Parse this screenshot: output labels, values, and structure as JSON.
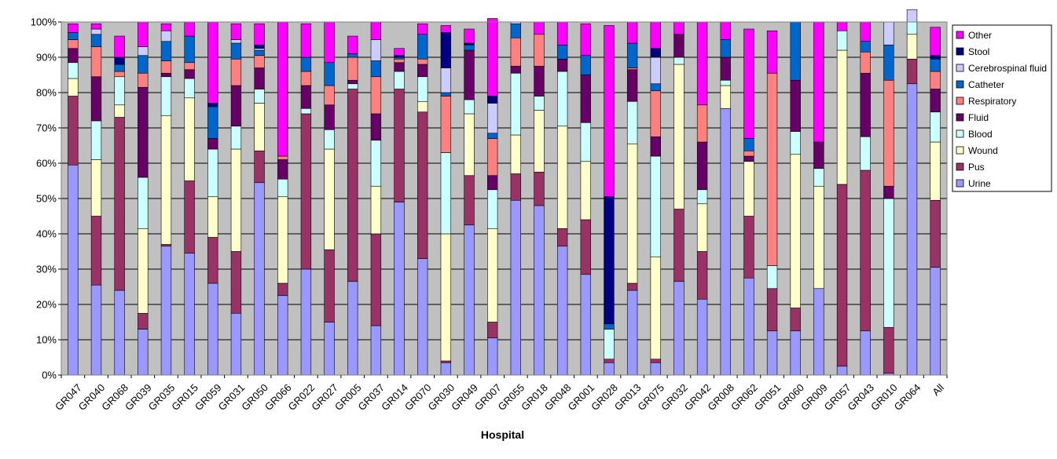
{
  "chart_data": {
    "type": "bar",
    "stacked": true,
    "percent_stacked": true,
    "title": "",
    "xlabel": "Hospital",
    "ylabel": "",
    "ylim": [
      0,
      100
    ],
    "yticks": [
      "0%",
      "10%",
      "20%",
      "30%",
      "40%",
      "50%",
      "60%",
      "70%",
      "80%",
      "90%",
      "100%"
    ],
    "grid": true,
    "plot_background": "#c0c0c0",
    "legend_position": "right",
    "categories": [
      "GR047",
      "GR040",
      "GR068",
      "GR039",
      "GR035",
      "GR015",
      "GR059",
      "GR031",
      "GR050",
      "GR066",
      "GR022",
      "GR027",
      "GR005",
      "GR037",
      "GR014",
      "GR070",
      "GR030",
      "GR049",
      "GR007",
      "GR055",
      "GR018",
      "GR048",
      "GR001",
      "GR028",
      "GR013",
      "GR075",
      "GR032",
      "GR042",
      "GR008",
      "GR062",
      "GR051",
      "GR060",
      "GR009",
      "GR057",
      "GR043",
      "GR010",
      "GR064",
      "All"
    ],
    "series": [
      {
        "name": "Urine",
        "color": "#9999ff",
        "values": [
          59.5,
          25.5,
          24,
          13,
          36.5,
          34.5,
          26,
          17.5,
          54.5,
          22.5,
          30,
          15,
          26.5,
          14,
          49,
          33,
          3.5,
          42.5,
          10.5,
          49.5,
          48,
          36.5,
          28.5,
          3.5,
          24,
          3.5,
          26.5,
          21.5,
          75.5,
          27.5,
          12.5,
          12.5,
          24.5,
          2.5,
          12.5,
          0.5,
          82.5,
          30.5
        ]
      },
      {
        "name": "Pus",
        "color": "#993366",
        "values": [
          19.5,
          19.5,
          49,
          4.5,
          0.5,
          20.5,
          13,
          17.5,
          9,
          3.5,
          44,
          20.5,
          54.5,
          26,
          32,
          41.5,
          0.5,
          14,
          4.5,
          7.5,
          9.5,
          5,
          15.5,
          1,
          2,
          1,
          20.5,
          13.5,
          0,
          17.5,
          12,
          6.5,
          0,
          51.5,
          45.5,
          13,
          7,
          19
        ]
      },
      {
        "name": "Wound",
        "color": "#ffffcc",
        "values": [
          5,
          16,
          3.5,
          24,
          36.5,
          23.5,
          11.5,
          29,
          13.5,
          24.5,
          0,
          28.5,
          0,
          13.5,
          0,
          3,
          36,
          17.5,
          26.5,
          11,
          17.5,
          29,
          16.5,
          0,
          39.5,
          29,
          41,
          13.5,
          6.5,
          15.5,
          0,
          43.5,
          29,
          38,
          0,
          0,
          7,
          16.5
        ]
      },
      {
        "name": "Blood",
        "color": "#ccffff",
        "values": [
          4.5,
          11,
          8,
          14.5,
          11,
          5.5,
          13.5,
          6.5,
          4,
          5,
          1.5,
          5.5,
          1.5,
          13,
          5,
          7,
          23,
          4,
          11,
          17.5,
          4,
          15.5,
          11,
          8.5,
          12,
          28.5,
          2,
          4,
          1.5,
          0,
          6.5,
          6.5,
          5,
          5.5,
          9.5,
          36.5,
          3.5,
          8.5
        ]
      },
      {
        "name": "Fluid",
        "color": "#660066",
        "values": [
          4,
          12.5,
          0,
          25.5,
          1,
          2.5,
          3,
          11.5,
          6,
          5.5,
          6.5,
          7,
          1,
          7.5,
          2.5,
          3.5,
          0,
          14,
          4,
          2,
          8.5,
          3.5,
          13.5,
          0,
          9,
          5.5,
          6.5,
          13.5,
          6.5,
          1.5,
          0,
          14.5,
          7.5,
          0,
          18,
          3.5,
          0,
          6.5
        ]
      },
      {
        "name": "Respiratory",
        "color": "#ff8080",
        "values": [
          2.5,
          8.5,
          1.5,
          4,
          3.5,
          2,
          0,
          7.5,
          3.5,
          1,
          4,
          5.5,
          6.5,
          10.5,
          1,
          1.5,
          16,
          0,
          10.5,
          8,
          9,
          0,
          0,
          0,
          0.5,
          13,
          0,
          10.5,
          0,
          1.5,
          54.5,
          0,
          0,
          0,
          6,
          30,
          0,
          5
        ]
      },
      {
        "name": "Catheter",
        "color": "#0066cc",
        "values": [
          2,
          3.5,
          2,
          5,
          5.5,
          7.5,
          9,
          4.5,
          1.5,
          0,
          4,
          6.5,
          1,
          4.5,
          0.5,
          7,
          1,
          1.5,
          1.5,
          4,
          0,
          4,
          5.5,
          1.5,
          7,
          2,
          0,
          0,
          5,
          3.5,
          0,
          16.5,
          0,
          0,
          3,
          10,
          0,
          3.5
        ]
      },
      {
        "name": "Cerebrospinal fluid",
        "color": "#ccccff",
        "values": [
          0,
          1.5,
          0,
          2.5,
          3,
          0,
          0,
          1,
          0.5,
          0,
          0,
          0,
          0,
          6,
          0,
          0,
          7,
          0,
          8.5,
          0.5,
          0,
          0,
          0,
          0,
          0,
          7.5,
          0,
          0,
          0,
          0,
          0,
          0,
          0,
          0,
          0,
          6.5,
          3.5,
          0
        ]
      },
      {
        "name": "Stool",
        "color": "#000080",
        "values": [
          0,
          0,
          2,
          0,
          0,
          0,
          1,
          0,
          1,
          0,
          0,
          0,
          0,
          0,
          0.5,
          0,
          10,
          0.5,
          2,
          0,
          0,
          0,
          0,
          36,
          0,
          2.5,
          0,
          0,
          0,
          0,
          0,
          0,
          0,
          0,
          0,
          0,
          0,
          1
        ]
      },
      {
        "name": "Other",
        "color": "#ff00ff",
        "values": [
          2.5,
          1.5,
          6,
          7,
          2,
          4,
          23,
          4.5,
          6,
          38,
          9.5,
          11.5,
          5,
          5,
          2,
          3,
          2,
          4,
          22,
          0,
          3.5,
          6.5,
          9,
          48.5,
          6,
          7.5,
          3.5,
          23.5,
          5,
          31,
          12,
          0,
          34,
          2.5,
          5.5,
          0,
          0,
          8
        ]
      }
    ]
  }
}
